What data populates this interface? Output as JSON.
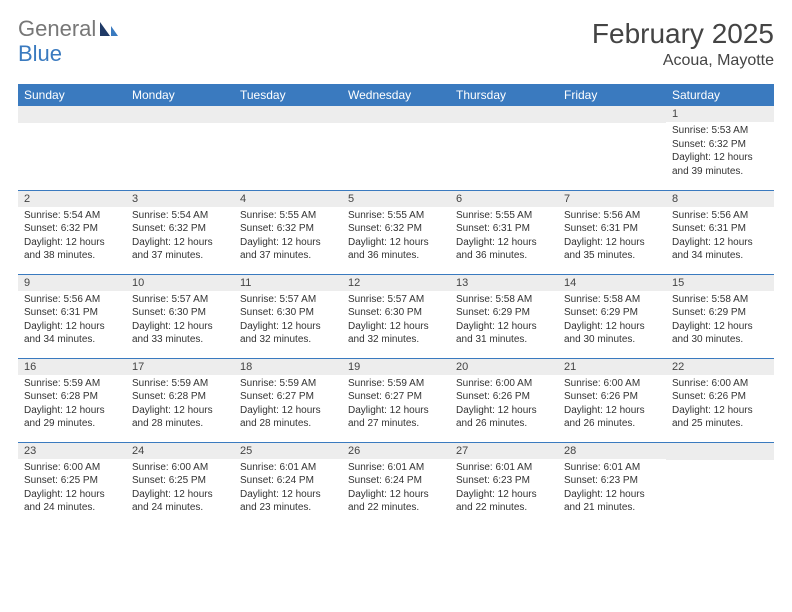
{
  "logo": {
    "general": "General",
    "blue": "Blue"
  },
  "header": {
    "title": "February 2025",
    "location": "Acoua, Mayotte"
  },
  "colors": {
    "accent": "#3a7abf",
    "row_bg": "#ededed",
    "text": "#333333"
  },
  "weekdays": [
    "Sunday",
    "Monday",
    "Tuesday",
    "Wednesday",
    "Thursday",
    "Friday",
    "Saturday"
  ],
  "labels": {
    "sunrise": "Sunrise:",
    "sunset": "Sunset:",
    "daylight": "Daylight:"
  },
  "weeks": [
    [
      null,
      null,
      null,
      null,
      null,
      null,
      {
        "n": "1",
        "sr": "5:53 AM",
        "ss": "6:32 PM",
        "dl": "12 hours and 39 minutes."
      }
    ],
    [
      {
        "n": "2",
        "sr": "5:54 AM",
        "ss": "6:32 PM",
        "dl": "12 hours and 38 minutes."
      },
      {
        "n": "3",
        "sr": "5:54 AM",
        "ss": "6:32 PM",
        "dl": "12 hours and 37 minutes."
      },
      {
        "n": "4",
        "sr": "5:55 AM",
        "ss": "6:32 PM",
        "dl": "12 hours and 37 minutes."
      },
      {
        "n": "5",
        "sr": "5:55 AM",
        "ss": "6:32 PM",
        "dl": "12 hours and 36 minutes."
      },
      {
        "n": "6",
        "sr": "5:55 AM",
        "ss": "6:31 PM",
        "dl": "12 hours and 36 minutes."
      },
      {
        "n": "7",
        "sr": "5:56 AM",
        "ss": "6:31 PM",
        "dl": "12 hours and 35 minutes."
      },
      {
        "n": "8",
        "sr": "5:56 AM",
        "ss": "6:31 PM",
        "dl": "12 hours and 34 minutes."
      }
    ],
    [
      {
        "n": "9",
        "sr": "5:56 AM",
        "ss": "6:31 PM",
        "dl": "12 hours and 34 minutes."
      },
      {
        "n": "10",
        "sr": "5:57 AM",
        "ss": "6:30 PM",
        "dl": "12 hours and 33 minutes."
      },
      {
        "n": "11",
        "sr": "5:57 AM",
        "ss": "6:30 PM",
        "dl": "12 hours and 32 minutes."
      },
      {
        "n": "12",
        "sr": "5:57 AM",
        "ss": "6:30 PM",
        "dl": "12 hours and 32 minutes."
      },
      {
        "n": "13",
        "sr": "5:58 AM",
        "ss": "6:29 PM",
        "dl": "12 hours and 31 minutes."
      },
      {
        "n": "14",
        "sr": "5:58 AM",
        "ss": "6:29 PM",
        "dl": "12 hours and 30 minutes."
      },
      {
        "n": "15",
        "sr": "5:58 AM",
        "ss": "6:29 PM",
        "dl": "12 hours and 30 minutes."
      }
    ],
    [
      {
        "n": "16",
        "sr": "5:59 AM",
        "ss": "6:28 PM",
        "dl": "12 hours and 29 minutes."
      },
      {
        "n": "17",
        "sr": "5:59 AM",
        "ss": "6:28 PM",
        "dl": "12 hours and 28 minutes."
      },
      {
        "n": "18",
        "sr": "5:59 AM",
        "ss": "6:27 PM",
        "dl": "12 hours and 28 minutes."
      },
      {
        "n": "19",
        "sr": "5:59 AM",
        "ss": "6:27 PM",
        "dl": "12 hours and 27 minutes."
      },
      {
        "n": "20",
        "sr": "6:00 AM",
        "ss": "6:26 PM",
        "dl": "12 hours and 26 minutes."
      },
      {
        "n": "21",
        "sr": "6:00 AM",
        "ss": "6:26 PM",
        "dl": "12 hours and 26 minutes."
      },
      {
        "n": "22",
        "sr": "6:00 AM",
        "ss": "6:26 PM",
        "dl": "12 hours and 25 minutes."
      }
    ],
    [
      {
        "n": "23",
        "sr": "6:00 AM",
        "ss": "6:25 PM",
        "dl": "12 hours and 24 minutes."
      },
      {
        "n": "24",
        "sr": "6:00 AM",
        "ss": "6:25 PM",
        "dl": "12 hours and 24 minutes."
      },
      {
        "n": "25",
        "sr": "6:01 AM",
        "ss": "6:24 PM",
        "dl": "12 hours and 23 minutes."
      },
      {
        "n": "26",
        "sr": "6:01 AM",
        "ss": "6:24 PM",
        "dl": "12 hours and 22 minutes."
      },
      {
        "n": "27",
        "sr": "6:01 AM",
        "ss": "6:23 PM",
        "dl": "12 hours and 22 minutes."
      },
      {
        "n": "28",
        "sr": "6:01 AM",
        "ss": "6:23 PM",
        "dl": "12 hours and 21 minutes."
      },
      null
    ]
  ]
}
